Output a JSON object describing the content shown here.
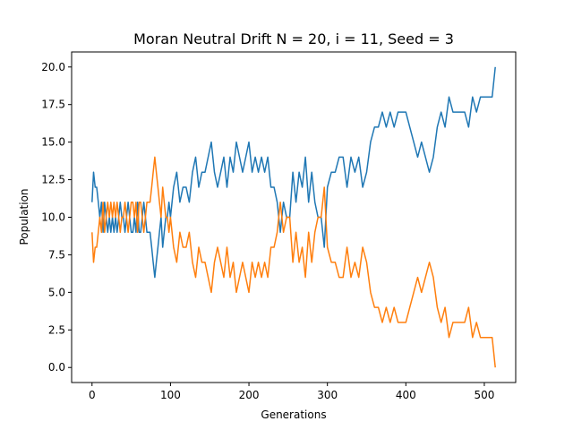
{
  "chart_data": {
    "type": "line",
    "title": "Moran Neutral Drift N = 20, i = 11, Seed = 3",
    "xlabel": "Generations",
    "ylabel": "Population",
    "xlim": [
      -26,
      540
    ],
    "ylim": [
      -1,
      21
    ],
    "xticks": [
      0,
      100,
      200,
      300,
      400,
      500
    ],
    "yticks": [
      0.0,
      2.5,
      5.0,
      7.5,
      10.0,
      12.5,
      15.0,
      17.5,
      20.0
    ],
    "ytick_labels": [
      "0.0",
      "2.5",
      "5.0",
      "7.5",
      "10.0",
      "12.5",
      "15.0",
      "17.5",
      "20.0"
    ],
    "xtick_labels": [
      "0",
      "100",
      "200",
      "300",
      "400",
      "500"
    ],
    "grid": false,
    "series_colors": [
      "#1f77b4",
      "#ff7f0e"
    ],
    "series": [
      {
        "x": [
          0,
          2,
          4,
          6,
          8,
          10,
          12,
          14,
          16,
          18,
          20,
          22,
          24,
          26,
          28,
          30,
          32,
          34,
          36,
          38,
          40,
          42,
          44,
          46,
          48,
          50,
          52,
          54,
          56,
          58,
          60,
          62,
          64,
          66,
          68,
          70,
          72,
          74,
          76,
          78,
          80,
          82,
          84,
          86,
          88,
          90,
          92,
          94,
          96,
          98,
          100,
          104,
          108,
          112,
          116,
          120,
          124,
          128,
          132,
          136,
          140,
          144,
          148,
          152,
          156,
          160,
          164,
          168,
          172,
          176,
          180,
          184,
          188,
          192,
          196,
          200,
          204,
          208,
          212,
          216,
          220,
          224,
          228,
          232,
          236,
          240,
          244,
          248,
          252,
          256,
          260,
          264,
          268,
          272,
          276,
          280,
          284,
          288,
          292,
          296,
          300,
          305,
          310,
          315,
          320,
          325,
          330,
          335,
          340,
          345,
          350,
          355,
          360,
          365,
          370,
          375,
          380,
          385,
          390,
          395,
          400,
          405,
          410,
          415,
          420,
          425,
          430,
          435,
          440,
          445,
          450,
          455,
          460,
          465,
          470,
          475,
          480,
          485,
          490,
          495,
          500,
          505,
          510,
          514
        ],
        "y": [
          11,
          13,
          12,
          12,
          11,
          10,
          11,
          9,
          11,
          10,
          9,
          10,
          9,
          10,
          9,
          10,
          9,
          10,
          11,
          10,
          10,
          9,
          10,
          11,
          10,
          9,
          9,
          10,
          9,
          11,
          9,
          9,
          10,
          11,
          10,
          9,
          9,
          9,
          8,
          7,
          6,
          7,
          8,
          9,
          10,
          8,
          9,
          10,
          10,
          11,
          10,
          12,
          13,
          11,
          12,
          12,
          11,
          13,
          14,
          12,
          13,
          13,
          14,
          15,
          13,
          12,
          13,
          14,
          12,
          14,
          13,
          15,
          14,
          13,
          14,
          15,
          13,
          14,
          13,
          14,
          13,
          14,
          12,
          12,
          11,
          9,
          11,
          10,
          10,
          13,
          11,
          13,
          12,
          14,
          11,
          13,
          11,
          10,
          10,
          8,
          12,
          13,
          13,
          14,
          14,
          12,
          14,
          13,
          14,
          12,
          13,
          15,
          16,
          16,
          17,
          16,
          17,
          16,
          17,
          17,
          17,
          16,
          15,
          14,
          15,
          14,
          13,
          14,
          16,
          17,
          16,
          18,
          17,
          17,
          17,
          17,
          16,
          18,
          17,
          18,
          18,
          18,
          18,
          20
        ]
      },
      {
        "x": [
          0,
          2,
          4,
          6,
          8,
          10,
          12,
          14,
          16,
          18,
          20,
          22,
          24,
          26,
          28,
          30,
          32,
          34,
          36,
          38,
          40,
          42,
          44,
          46,
          48,
          50,
          52,
          54,
          56,
          58,
          60,
          62,
          64,
          66,
          68,
          70,
          72,
          74,
          76,
          78,
          80,
          82,
          84,
          86,
          88,
          90,
          92,
          94,
          96,
          98,
          100,
          104,
          108,
          112,
          116,
          120,
          124,
          128,
          132,
          136,
          140,
          144,
          148,
          152,
          156,
          160,
          164,
          168,
          172,
          176,
          180,
          184,
          188,
          192,
          196,
          200,
          204,
          208,
          212,
          216,
          220,
          224,
          228,
          232,
          236,
          240,
          244,
          248,
          252,
          256,
          260,
          264,
          268,
          272,
          276,
          280,
          284,
          288,
          292,
          296,
          300,
          305,
          310,
          315,
          320,
          325,
          330,
          335,
          340,
          345,
          350,
          355,
          360,
          365,
          370,
          375,
          380,
          385,
          390,
          395,
          400,
          405,
          410,
          415,
          420,
          425,
          430,
          435,
          440,
          445,
          450,
          455,
          460,
          465,
          470,
          475,
          480,
          485,
          490,
          495,
          500,
          505,
          510,
          514
        ],
        "y": [
          9,
          7,
          8,
          8,
          9,
          10,
          9,
          11,
          9,
          10,
          11,
          10,
          11,
          10,
          11,
          10,
          11,
          10,
          9,
          10,
          10,
          11,
          10,
          9,
          10,
          11,
          11,
          10,
          11,
          9,
          11,
          11,
          10,
          9,
          10,
          11,
          11,
          11,
          12,
          13,
          14,
          13,
          12,
          11,
          10,
          12,
          11,
          10,
          10,
          9,
          10,
          8,
          7,
          9,
          8,
          8,
          9,
          7,
          6,
          8,
          7,
          7,
          6,
          5,
          7,
          8,
          7,
          6,
          8,
          6,
          7,
          5,
          6,
          7,
          6,
          5,
          7,
          6,
          7,
          6,
          7,
          6,
          8,
          8,
          9,
          11,
          9,
          10,
          10,
          7,
          9,
          7,
          8,
          6,
          9,
          7,
          9,
          10,
          10,
          12,
          8,
          7,
          7,
          6,
          6,
          8,
          6,
          7,
          6,
          8,
          7,
          5,
          4,
          4,
          3,
          4,
          3,
          4,
          3,
          3,
          3,
          4,
          5,
          6,
          5,
          6,
          7,
          6,
          4,
          3,
          4,
          2,
          3,
          3,
          3,
          3,
          4,
          2,
          3,
          2,
          2,
          2,
          2,
          0
        ]
      }
    ]
  }
}
